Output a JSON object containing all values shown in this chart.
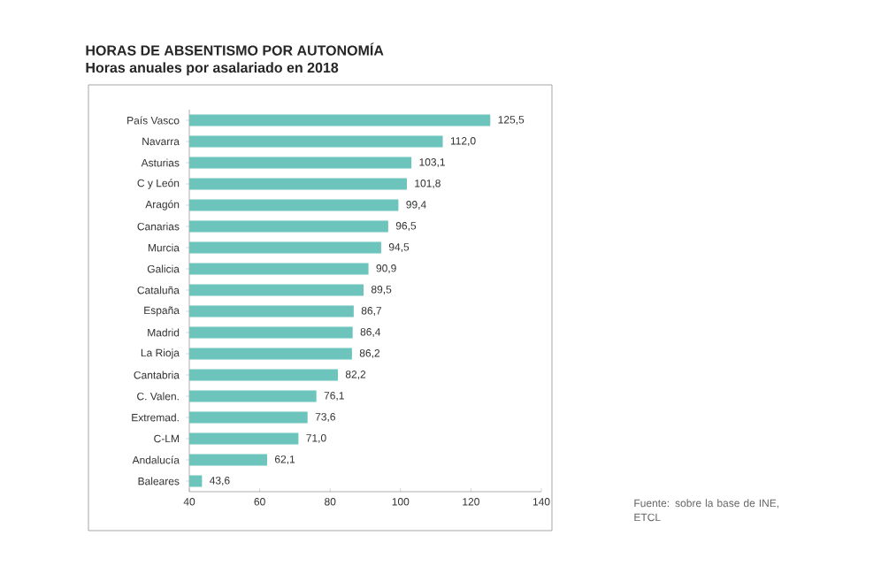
{
  "chart_data": {
    "type": "bar",
    "orientation": "horizontal",
    "title": "HORAS DE ABSENTISMO POR AUTONOMÍA",
    "subtitle": "Horas anuales por asalariado en 2018",
    "categories": [
      "País Vasco",
      "Navarra",
      "Asturias",
      "C y León",
      "Aragón",
      "Canarias",
      "Murcia",
      "Galicia",
      "Cataluña",
      "España",
      "Madrid",
      "La Rioja",
      "Cantabria",
      "C. Valen.",
      "Extremad.",
      "C-LM",
      "Andalucía",
      "Baleares"
    ],
    "values": [
      125.5,
      112.0,
      103.1,
      101.8,
      99.4,
      96.5,
      94.5,
      90.9,
      89.5,
      86.7,
      86.4,
      86.2,
      82.2,
      76.1,
      73.6,
      71.0,
      62.1,
      43.6
    ],
    "value_labels": [
      "125,5",
      "112,0",
      "103,1",
      "101,8",
      "99,4",
      "96,5",
      "94,5",
      "90,9",
      "89,5",
      "86,7",
      "86,4",
      "86,2",
      "82,2",
      "76,1",
      "73,6",
      "71,0",
      "62,1",
      "43,6"
    ],
    "color": "#6cc4bc",
    "xlim": [
      40,
      140
    ],
    "xticks": [
      40,
      60,
      80,
      100,
      120,
      140
    ],
    "annotations": [
      "Fuente: sobre la base de INE, ETCL"
    ]
  }
}
